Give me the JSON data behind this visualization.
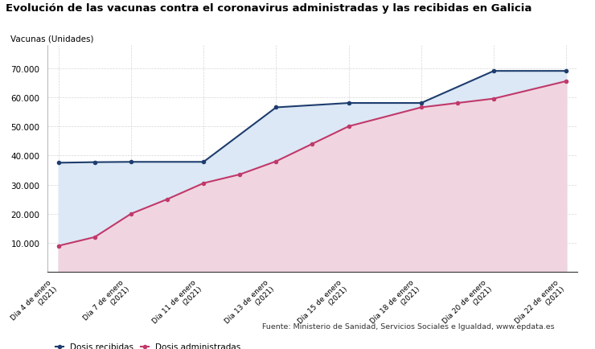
{
  "title": "Evolución de las vacunas contra el coronavirus administradas y las recibidas en Galicia",
  "ylabel": "Vacunas (Unidades)",
  "x_labels": [
    "Día 4 de enero\n(2021)",
    "Día 7 de enero\n(2021)",
    "Día 11 de enero\n(2021)",
    "Día 13 de enero\n(2021)",
    "Día 15 de enero\n(2021)",
    "Día 18 de enero\n(2021)",
    "Día 20 de enero\n(2021)",
    "Día 22 de enero\n(2021)"
  ],
  "rec_x": [
    0,
    0.5,
    1,
    2,
    3,
    4,
    5,
    6,
    7
  ],
  "rec_y": [
    37500,
    37700,
    37800,
    37800,
    56500,
    58000,
    58000,
    69000,
    69000
  ],
  "adm_x": [
    0,
    0.5,
    1,
    1.5,
    2,
    2.5,
    3,
    3.5,
    4,
    5,
    5.5,
    6,
    7
  ],
  "adm_y": [
    9000,
    12000,
    20000,
    25000,
    30500,
    33500,
    38000,
    44000,
    50000,
    56500,
    58000,
    59500,
    65500
  ],
  "color_recibidas": "#1e3d6e",
  "color_administradas": "#c0396b",
  "legend_recibidas": "Dosis recibidas",
  "legend_administradas": "Dosis administradas",
  "source": "Fuente: Ministerio de Sanidad, Servicios Sociales e Igualdad, www.epdata.es",
  "ylim": [
    0,
    78000
  ],
  "yticks": [
    10000,
    20000,
    30000,
    40000,
    50000,
    60000,
    70000
  ],
  "background_color": "#ffffff",
  "grid_color": "#cccccc",
  "fill_blue": "#dce8f5",
  "fill_pink": "#f0d5e0"
}
